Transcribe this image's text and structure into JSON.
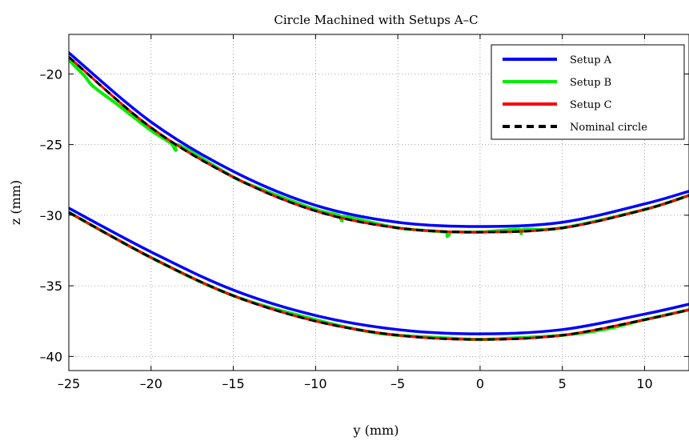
{
  "chart_data": {
    "type": "line",
    "title": "Circle Machined with Setups A–C",
    "xlabel": "y (mm)",
    "ylabel": "z (mm)",
    "xlim": [
      -25,
      12.7
    ],
    "ylim": [
      -41,
      -17.2
    ],
    "xticks": [
      -25,
      -20,
      -15,
      -10,
      -5,
      0,
      5,
      10
    ],
    "xtick_labels": [
      "–25",
      "–20",
      "–15",
      "–10",
      "–5",
      "0",
      "5",
      "10"
    ],
    "yticks": [
      -40,
      -35,
      -30,
      -25,
      -20
    ],
    "ytick_labels": [
      "–40",
      "–35",
      "–30",
      "–25",
      "–20"
    ],
    "grid": true,
    "legend_position": "top-right",
    "series": [
      {
        "name": "Setup A",
        "color": "#0000ff",
        "dash": "solid",
        "curves": [
          {
            "x": [
              -25,
              -20,
              -15,
              -10,
              -5,
              0,
              5,
              10,
              12.7
            ],
            "y": [
              -18.5,
              -23.4,
              -26.9,
              -29.3,
              -30.5,
              -30.8,
              -30.5,
              -29.2,
              -28.3
            ]
          },
          {
            "x": [
              -25,
              -20,
              -15,
              -10,
              -5,
              0,
              5,
              10,
              12.7
            ],
            "y": [
              -29.5,
              -32.6,
              -35.3,
              -37.1,
              -38.1,
              -38.4,
              -38.1,
              -37.0,
              -36.3
            ]
          }
        ]
      },
      {
        "name": "Setup B",
        "color": "#00ee00",
        "dash": "solid",
        "curves": [
          {
            "x": [
              -25,
              -24.5,
              -24,
              -23.5,
              -22,
              -20,
              -18.8,
              -18.5,
              -18.2,
              -15,
              -13.2,
              -10,
              -8.6,
              -8.4,
              -8.2,
              -5,
              -2.1,
              -2.0,
              -1.8,
              0,
              2.3,
              2.5,
              2.7,
              5,
              10,
              12.7
            ],
            "y": [
              -19.0,
              -19.6,
              -20.2,
              -20.9,
              -22.2,
              -24.0,
              -24.9,
              -25.4,
              -25.1,
              -27.3,
              -28.2,
              -29.6,
              -30.0,
              -30.4,
              -30.1,
              -30.9,
              -31.2,
              -31.5,
              -31.2,
              -31.2,
              -31.0,
              -31.3,
              -31.0,
              -30.9,
              -29.6,
              -28.6
            ]
          },
          {
            "x": [
              -25,
              -20,
              -15,
              -10,
              -7,
              -5,
              -2,
              0,
              2,
              5,
              7.5,
              10,
              12.7
            ],
            "y": [
              -29.8,
              -33.0,
              -35.7,
              -37.4,
              -38.2,
              -38.5,
              -38.7,
              -38.8,
              -38.7,
              -38.5,
              -38.1,
              -37.4,
              -36.7
            ]
          }
        ]
      },
      {
        "name": "Setup C",
        "color": "#ff0000",
        "dash": "solid",
        "curves": [
          {
            "x": [
              -25,
              -20,
              -15,
              -10,
              -5,
              0,
              5,
              10,
              12.7
            ],
            "y": [
              -18.8,
              -23.8,
              -27.3,
              -29.7,
              -30.9,
              -31.2,
              -30.9,
              -29.6,
              -28.6
            ]
          },
          {
            "x": [
              -25,
              -20,
              -15,
              -10,
              -5,
              0,
              5,
              10,
              12.7
            ],
            "y": [
              -29.8,
              -33.0,
              -35.7,
              -37.5,
              -38.5,
              -38.8,
              -38.5,
              -37.4,
              -36.7
            ]
          }
        ]
      },
      {
        "name": "Nominal circle",
        "color": "#000000",
        "dash": "dashed",
        "curves": [
          {
            "x": [
              -25,
              -20,
              -15,
              -10,
              -5,
              0,
              5,
              10,
              12.7
            ],
            "y": [
              -18.8,
              -23.8,
              -27.3,
              -29.7,
              -30.9,
              -31.2,
              -30.9,
              -29.6,
              -28.6
            ]
          },
          {
            "x": [
              -25,
              -20,
              -15,
              -10,
              -5,
              0,
              5,
              10,
              12.7
            ],
            "y": [
              -29.8,
              -33.0,
              -35.7,
              -37.5,
              -38.5,
              -38.8,
              -38.5,
              -37.4,
              -36.7
            ]
          }
        ]
      }
    ]
  }
}
